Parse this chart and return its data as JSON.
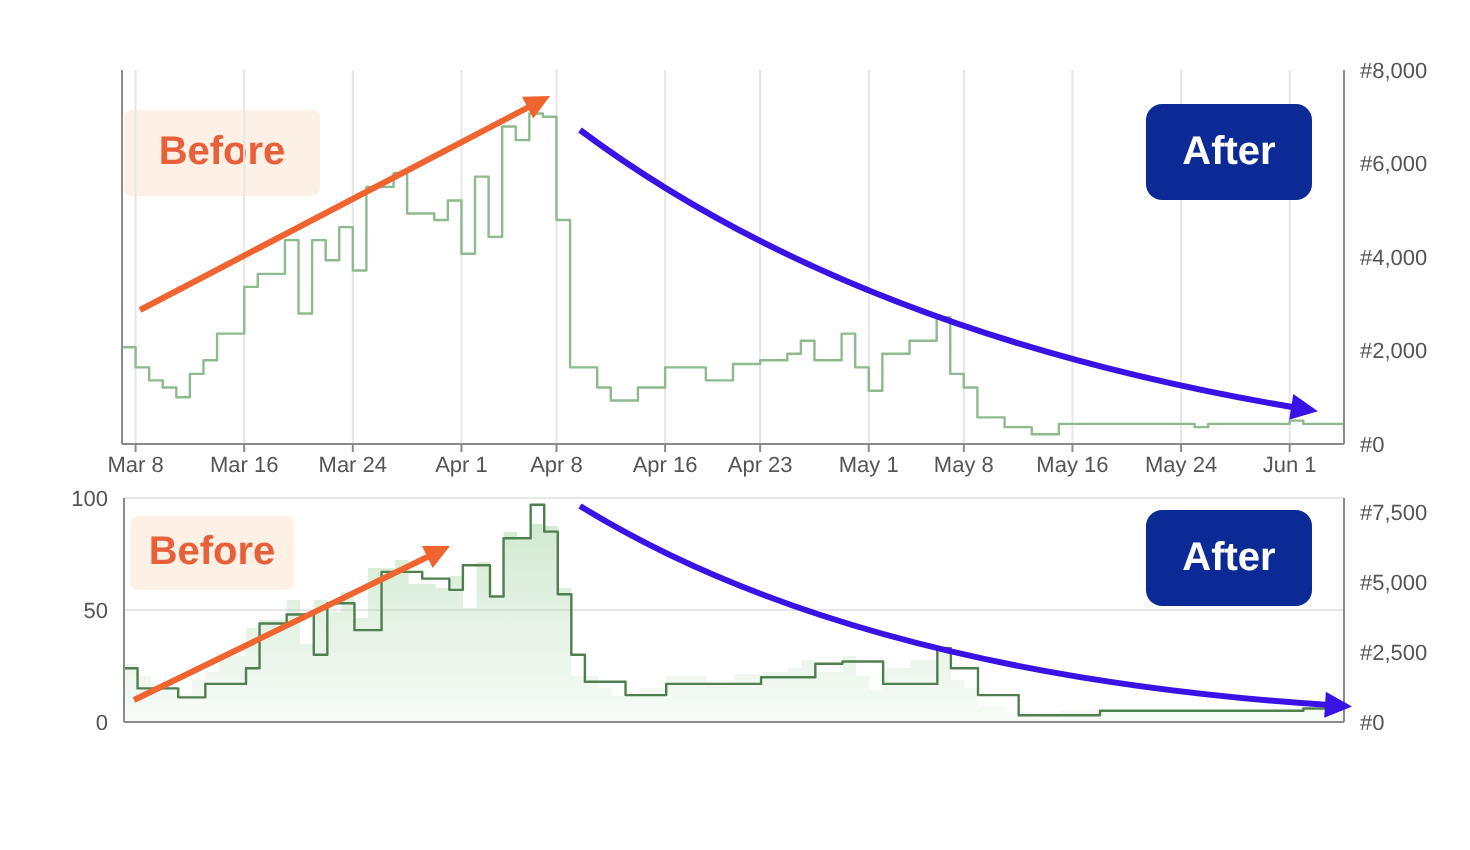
{
  "chart_data": [
    {
      "type": "step",
      "xlim": [
        "--03-07",
        "--06-05"
      ],
      "xticks": [
        {
          "value": "--03-08",
          "label": "Mar 8"
        },
        {
          "value": "--03-16",
          "label": "Mar 16"
        },
        {
          "value": "--03-24",
          "label": "Mar 24"
        },
        {
          "value": "--04-01",
          "label": "Apr 1"
        },
        {
          "value": "--04-08",
          "label": "Apr 8"
        },
        {
          "value": "--04-16",
          "label": "Apr 16"
        },
        {
          "value": "--04-23",
          "label": "Apr 23"
        },
        {
          "value": "--05-01",
          "label": "May 1"
        },
        {
          "value": "--05-08",
          "label": "May 8"
        },
        {
          "value": "--05-16",
          "label": "May 16"
        },
        {
          "value": "--05-24",
          "label": "May 24"
        },
        {
          "value": "--06-01",
          "label": "Jun 1"
        }
      ],
      "ylim": [
        0,
        8000
      ],
      "yticks": [
        {
          "value": 0,
          "label": "#0"
        },
        {
          "value": 2000,
          "label": "#2,000"
        },
        {
          "value": 4000,
          "label": "#4,000"
        },
        {
          "value": 6000,
          "label": "#6,000"
        },
        {
          "value": 8000,
          "label": "#8,000"
        }
      ],
      "grid": "x",
      "annotations": [
        "Before",
        "After"
      ],
      "series": [
        {
          "color": "#8dbb8d",
          "x": [
            "--03-07",
            "--03-08",
            "--03-09",
            "--03-10",
            "--03-11",
            "--03-12",
            "--03-13",
            "--03-14",
            "--03-16",
            "--03-17",
            "--03-19",
            "--03-20",
            "--03-21",
            "--03-22",
            "--03-23",
            "--03-24",
            "--03-25",
            "--03-27",
            "--03-28",
            "--03-30",
            "--03-31",
            "--04-01",
            "--04-02",
            "--04-03",
            "--04-04",
            "--04-05",
            "--04-06",
            "--04-07",
            "--04-08",
            "--04-09",
            "--04-11",
            "--04-12",
            "--04-14",
            "--04-16",
            "--04-19",
            "--04-21",
            "--04-23",
            "--04-25",
            "--04-26",
            "--04-27",
            "--04-29",
            "--04-30",
            "--05-01",
            "--05-02",
            "--05-04",
            "--05-06",
            "--05-07",
            "--05-08",
            "--05-09",
            "--05-11",
            "--05-13",
            "--05-15",
            "--05-21",
            "--05-25",
            "--05-26",
            "--06-01",
            "--06-02",
            "--06-05"
          ],
          "values": [
            2070,
            1640,
            1360,
            1210,
            1000,
            1500,
            1790,
            2360,
            3360,
            3640,
            4360,
            2790,
            4360,
            3930,
            4640,
            3710,
            5500,
            5790,
            4930,
            4790,
            5210,
            4070,
            5720,
            4430,
            6790,
            6500,
            7070,
            7000,
            4790,
            1640,
            1210,
            930,
            1210,
            1640,
            1360,
            1710,
            1790,
            1930,
            2210,
            1790,
            2360,
            1640,
            1140,
            1930,
            2210,
            2710,
            1500,
            1210,
            570,
            360,
            210,
            430,
            430,
            360,
            430,
            500,
            430,
            290
          ]
        }
      ]
    },
    {
      "type": "step",
      "xlim": [
        "--03-07",
        "--06-05"
      ],
      "xticks": [
        {
          "value": "--03-08",
          "label": null
        },
        {
          "value": "--03-16",
          "label": null
        },
        {
          "value": "--03-24",
          "label": null
        },
        {
          "value": "--04-01",
          "label": null
        },
        {
          "value": "--04-08",
          "label": null
        },
        {
          "value": "--04-16",
          "label": null
        },
        {
          "value": "--04-23",
          "label": null
        },
        {
          "value": "--05-01",
          "label": null
        },
        {
          "value": "--05-08",
          "label": null
        },
        {
          "value": "--05-16",
          "label": null
        },
        {
          "value": "--05-24",
          "label": null
        },
        {
          "value": "--06-01",
          "label": null
        }
      ],
      "ylim": [
        0,
        100
      ],
      "yticks": [
        0,
        50,
        100
      ],
      "y2lim": [
        0,
        8000
      ],
      "y2ticks": [
        {
          "value": 0,
          "label": "#0"
        },
        {
          "value": 2500,
          "label": "#2,500"
        },
        {
          "value": 5000,
          "label": "#5,000"
        },
        {
          "value": 7500,
          "label": "#7,500"
        }
      ],
      "grid": true,
      "tick_labels": "y",
      "annotations": [
        "Before",
        "After"
      ],
      "series": [
        {
          "type": "area",
          "axis": "y2",
          "color": "#a8d5a8",
          "x": [
            "--03-07",
            "--03-08",
            "--03-09",
            "--03-10",
            "--03-11",
            "--03-12",
            "--03-13",
            "--03-14",
            "--03-16",
            "--03-17",
            "--03-19",
            "--03-20",
            "--03-21",
            "--03-22",
            "--03-23",
            "--03-24",
            "--03-25",
            "--03-27",
            "--03-28",
            "--03-30",
            "--03-31",
            "--04-01",
            "--04-02",
            "--04-03",
            "--04-04",
            "--04-05",
            "--04-06",
            "--04-07",
            "--04-08",
            "--04-09",
            "--04-11",
            "--04-12",
            "--04-14",
            "--04-16",
            "--04-19",
            "--04-21",
            "--04-23",
            "--04-25",
            "--04-26",
            "--04-27",
            "--04-29",
            "--04-30",
            "--05-01",
            "--05-02",
            "--05-04",
            "--05-06",
            "--05-07",
            "--05-08",
            "--05-09",
            "--05-11",
            "--05-13",
            "--05-15",
            "--05-21",
            "--05-25",
            "--05-26",
            "--06-01",
            "--06-02",
            "--06-05"
          ],
          "values": [
            2070,
            1640,
            1360,
            1210,
            1000,
            1500,
            1790,
            2360,
            3360,
            3640,
            4360,
            2790,
            4360,
            3930,
            4640,
            3710,
            5500,
            5790,
            4930,
            4790,
            5210,
            4070,
            5720,
            4430,
            6790,
            6500,
            7070,
            7000,
            4790,
            1640,
            1210,
            930,
            1210,
            1640,
            1360,
            1710,
            1790,
            1930,
            2210,
            1790,
            2360,
            1640,
            1140,
            1930,
            2210,
            2710,
            1500,
            1210,
            570,
            360,
            210,
            430,
            430,
            360,
            430,
            500,
            430,
            290
          ]
        },
        {
          "color": "#4f7f4f",
          "x": [
            "--03-07",
            "--03-08",
            "--03-11",
            "--03-13",
            "--03-16",
            "--03-17",
            "--03-19",
            "--03-21",
            "--03-22",
            "--03-24",
            "--03-26",
            "--03-29",
            "--03-31",
            "--04-01",
            "--04-03",
            "--04-04",
            "--04-06",
            "--04-07",
            "--04-08",
            "--04-09",
            "--04-10",
            "--04-13",
            "--04-16",
            "--04-19",
            "--04-23",
            "--04-27",
            "--04-29",
            "--05-02",
            "--05-06",
            "--05-07",
            "--05-09",
            "--05-12",
            "--05-18",
            "--05-25",
            "--06-02",
            "--06-05"
          ],
          "values": [
            24,
            15,
            11,
            17,
            24,
            44,
            48,
            30,
            53,
            41,
            67,
            64,
            59,
            70,
            56,
            82,
            97,
            85,
            57,
            30,
            18,
            12,
            17,
            17,
            20,
            26,
            27,
            17,
            33,
            24,
            12,
            3,
            5,
            5,
            6,
            5
          ]
        }
      ]
    }
  ]
}
